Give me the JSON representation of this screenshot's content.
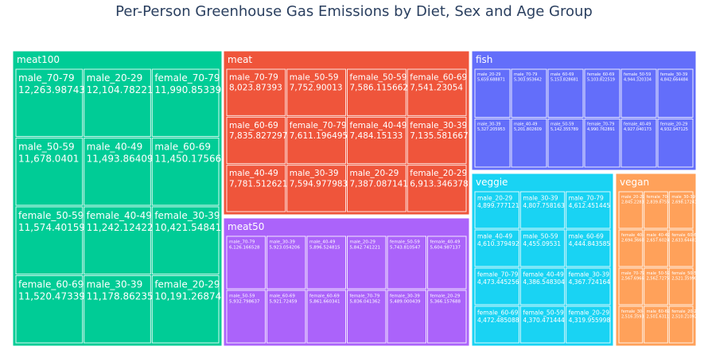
{
  "chart_data": {
    "type": "treemap",
    "title": "Per-Person Greenhouse Gas Emissions by Diet, Sex and Age Group",
    "groups": [
      {
        "name": "meat100",
        "color": "#00cc96",
        "items": [
          {
            "label": "male_70-79",
            "value": "12,263.98743"
          },
          {
            "label": "male_20-29",
            "value": "12,104.78221"
          },
          {
            "label": "female_70-79",
            "value": "11,990.85339"
          },
          {
            "label": "male_50-59",
            "value": "11,678.0401"
          },
          {
            "label": "male_40-49",
            "value": "11,493.86409"
          },
          {
            "label": "male_60-69",
            "value": "11,450.17566"
          },
          {
            "label": "female_50-59",
            "value": "11,574.40159"
          },
          {
            "label": "female_40-49",
            "value": "11,242.12422"
          },
          {
            "label": "female_30-39",
            "value": "10,421.54841"
          },
          {
            "label": "female_60-69",
            "value": "11,520.47339"
          },
          {
            "label": "male_30-39",
            "value": "11,178.86235"
          },
          {
            "label": "female_20-29",
            "value": "10,191.26874"
          }
        ]
      },
      {
        "name": "meat",
        "color": "#ef553b",
        "items": [
          {
            "label": "male_70-79",
            "value": "8,023.87393"
          },
          {
            "label": "male_50-59",
            "value": "7,752.90013"
          },
          {
            "label": "female_50-59",
            "value": "7,586.115662"
          },
          {
            "label": "female_60-69",
            "value": "7,541.23054"
          },
          {
            "label": "male_60-69",
            "value": "7,835.827297"
          },
          {
            "label": "female_70-79",
            "value": "7,611.196495"
          },
          {
            "label": "female_40-49",
            "value": "7,484.15133"
          },
          {
            "label": "female_30-39",
            "value": "7,135.581667"
          },
          {
            "label": "male_40-49",
            "value": "7,781.512621"
          },
          {
            "label": "male_30-39",
            "value": "7,594.977983"
          },
          {
            "label": "male_20-29",
            "value": "7,387.087141"
          },
          {
            "label": "female_20-29",
            "value": "6,913.346378"
          }
        ]
      },
      {
        "name": "meat50",
        "color": "#ab63fa",
        "items": [
          {
            "label": "male_70-79",
            "value": "6,126.166528"
          },
          {
            "label": "male_30-39",
            "value": "5,923.054206"
          },
          {
            "label": "male_40-49",
            "value": "5,896.524815"
          },
          {
            "label": "male_20-29",
            "value": "5,842.741221"
          },
          {
            "label": "female_50-59",
            "value": "5,743.810547"
          },
          {
            "label": "female_40-49",
            "value": "5,604.987137"
          },
          {
            "label": "male_50-59",
            "value": "5,932.798637"
          },
          {
            "label": "male_60-69",
            "value": "5,921.72459"
          },
          {
            "label": "female_60-69",
            "value": "5,861.660341"
          },
          {
            "label": "female_70-79",
            "value": "5,836.041362"
          },
          {
            "label": "female_30-39",
            "value": "5,489.000439"
          },
          {
            "label": "female_20-29",
            "value": "5,366.157688"
          }
        ]
      },
      {
        "name": "fish",
        "color": "#636efa",
        "items": [
          {
            "label": "male_20-29",
            "value": "5,659.688871"
          },
          {
            "label": "male_70-79",
            "value": "5,303.953642"
          },
          {
            "label": "male_60-69",
            "value": "5,153.828681"
          },
          {
            "label": "female_60-69",
            "value": "5,103.822519"
          },
          {
            "label": "female_50-59",
            "value": "4,944.320334"
          },
          {
            "label": "female_30-39",
            "value": "4,842.664484"
          },
          {
            "label": "male_30-39",
            "value": "5,327.205953"
          },
          {
            "label": "male_40-49",
            "value": "5,201.802609"
          },
          {
            "label": "male_50-59",
            "value": "5,142.355789"
          },
          {
            "label": "female_70-79",
            "value": "4,990.762891"
          },
          {
            "label": "female_40-49",
            "value": "4,927.040173"
          },
          {
            "label": "female_20-29",
            "value": "4,932.947125"
          }
        ]
      },
      {
        "name": "veggie",
        "color": "#19d3f3",
        "items": [
          {
            "label": "male_20-29",
            "value": "4,899.777121"
          },
          {
            "label": "male_30-39",
            "value": "4,807.758163"
          },
          {
            "label": "male_70-79",
            "value": "4,612.451445"
          },
          {
            "label": "male_40-49",
            "value": "4,610.379492"
          },
          {
            "label": "male_50-59",
            "value": "4,455.09531"
          },
          {
            "label": "male_60-69",
            "value": "4,444.843585"
          },
          {
            "label": "female_70-79",
            "value": "4,473.445256"
          },
          {
            "label": "female_40-49",
            "value": "4,386.548304"
          },
          {
            "label": "female_30-39",
            "value": "4,367.724164"
          },
          {
            "label": "female_60-69",
            "value": "4,472.485088"
          },
          {
            "label": "female_50-59",
            "value": "4,370.471444"
          },
          {
            "label": "female_20-29",
            "value": "4,319.955998"
          }
        ]
      },
      {
        "name": "vegan",
        "color": "#ffa15a",
        "items": [
          {
            "label": "male_20-29",
            "value": "2,845.228309"
          },
          {
            "label": "female_70-79",
            "value": "2,839.875594"
          },
          {
            "label": "male_30-39",
            "value": "2,698.172418"
          },
          {
            "label": "female_40-49",
            "value": "2,694.36602"
          },
          {
            "label": "male_40-49",
            "value": "2,657.602422"
          },
          {
            "label": "female_60-69",
            "value": "2,633.644814"
          },
          {
            "label": "male_70-79",
            "value": "2,567.696603"
          },
          {
            "label": "male_50-59",
            "value": "2,562.72751"
          },
          {
            "label": "female_50-59",
            "value": "2,521.359903"
          },
          {
            "label": "female_30-39",
            "value": "2,516.359321"
          },
          {
            "label": "male_60-69",
            "value": "2,501.631193"
          },
          {
            "label": "female_20-29",
            "value": "2,510.210923"
          }
        ]
      }
    ]
  }
}
